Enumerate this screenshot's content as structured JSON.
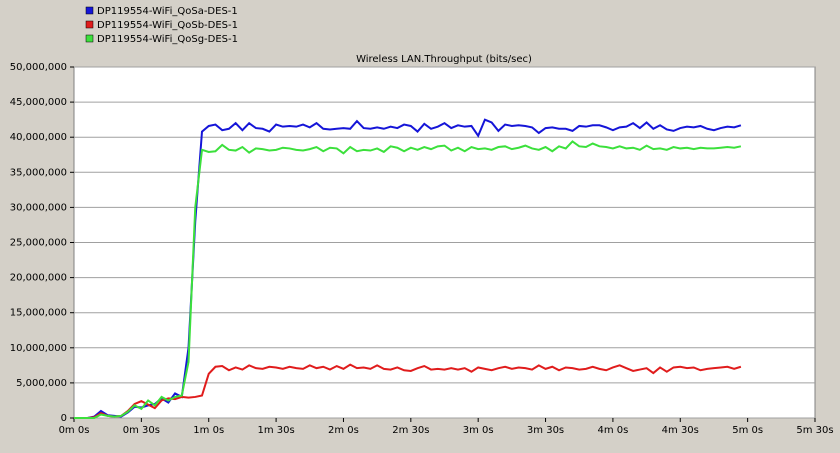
{
  "chart_data": {
    "type": "line",
    "title": "Wireless LAN.Throughput (bits/sec)",
    "x": [
      0,
      3,
      6,
      9,
      12,
      15,
      18,
      21,
      24,
      27,
      30,
      33,
      36,
      39,
      42,
      45,
      48,
      51,
      54,
      57,
      60,
      63,
      66,
      69,
      72,
      75,
      78,
      81,
      84,
      87,
      90,
      93,
      96,
      99,
      102,
      105,
      108,
      111,
      114,
      117,
      120,
      123,
      126,
      129,
      132,
      135,
      138,
      141,
      144,
      147,
      150,
      153,
      156,
      159,
      162,
      165,
      168,
      171,
      174,
      177,
      180,
      183,
      186,
      189,
      192,
      195,
      198,
      201,
      204,
      207,
      210,
      213,
      216,
      219,
      222,
      225,
      228,
      231,
      234,
      237,
      240,
      243,
      246,
      249,
      252,
      255,
      258,
      261,
      264,
      267,
      270,
      273,
      276,
      279,
      282,
      285,
      288,
      291,
      294,
      297
    ],
    "series": [
      {
        "name": "DP119554-WiFi_QoSa-DES-1",
        "color": "#1515d8",
        "values": [
          0,
          0,
          0,
          200000,
          1000000,
          400000,
          300000,
          200000,
          800000,
          1600000,
          1500000,
          1800000,
          2000000,
          2800000,
          2200000,
          3500000,
          3000000,
          10000000,
          28000000,
          40800000,
          41600000,
          41800000,
          41000000,
          41200000,
          42000000,
          41000000,
          42000000,
          41300000,
          41200000,
          40800000,
          41800000,
          41500000,
          41600000,
          41500000,
          41800000,
          41400000,
          42000000,
          41200000,
          41100000,
          41200000,
          41300000,
          41200000,
          42300000,
          41300000,
          41200000,
          41400000,
          41200000,
          41500000,
          41300000,
          41800000,
          41600000,
          40800000,
          41900000,
          41200000,
          41500000,
          42000000,
          41300000,
          41700000,
          41500000,
          41600000,
          40200000,
          42500000,
          42100000,
          40900000,
          41800000,
          41600000,
          41700000,
          41600000,
          41400000,
          40600000,
          41300000,
          41400000,
          41200000,
          41200000,
          40900000,
          41600000,
          41500000,
          41700000,
          41700000,
          41400000,
          41000000,
          41400000,
          41500000,
          42000000,
          41300000,
          42100000,
          41200000,
          41700000,
          41100000,
          40900000,
          41300000,
          41500000,
          41400000,
          41600000,
          41200000,
          41000000,
          41300000,
          41500000,
          41400000,
          41700000
        ]
      },
      {
        "name": "DP119554-WiFi_QoSb-DES-1",
        "color": "#e01c1c",
        "values": [
          0,
          0,
          0,
          100000,
          700000,
          300000,
          200000,
          300000,
          1000000,
          2000000,
          2400000,
          1900000,
          1400000,
          2500000,
          2800000,
          2700000,
          3000000,
          2900000,
          3000000,
          3200000,
          6300000,
          7300000,
          7400000,
          6800000,
          7200000,
          6900000,
          7500000,
          7100000,
          7000000,
          7300000,
          7200000,
          7000000,
          7300000,
          7100000,
          7000000,
          7500000,
          7100000,
          7300000,
          6900000,
          7400000,
          7000000,
          7600000,
          7100000,
          7200000,
          7000000,
          7500000,
          7000000,
          6900000,
          7200000,
          6800000,
          6700000,
          7100000,
          7400000,
          6900000,
          7000000,
          6900000,
          7100000,
          6900000,
          7100000,
          6600000,
          7200000,
          7000000,
          6800000,
          7100000,
          7300000,
          7000000,
          7200000,
          7100000,
          6900000,
          7500000,
          7000000,
          7300000,
          6800000,
          7200000,
          7100000,
          6900000,
          7000000,
          7300000,
          7000000,
          6800000,
          7200000,
          7500000,
          7100000,
          6700000,
          6900000,
          7100000,
          6400000,
          7200000,
          6600000,
          7200000,
          7300000,
          7100000,
          7200000,
          6800000,
          7000000,
          7100000,
          7200000,
          7300000,
          7000000,
          7300000
        ]
      },
      {
        "name": "DP119554-WiFi_QoSg-DES-1",
        "color": "#3ce03c",
        "values": [
          0,
          0,
          0,
          0,
          500000,
          300000,
          200000,
          300000,
          900000,
          1800000,
          1300000,
          2500000,
          1800000,
          3000000,
          2500000,
          3000000,
          3200000,
          8000000,
          30000000,
          38200000,
          37900000,
          38000000,
          38900000,
          38200000,
          38100000,
          38600000,
          37800000,
          38400000,
          38300000,
          38100000,
          38200000,
          38500000,
          38400000,
          38200000,
          38100000,
          38300000,
          38600000,
          38000000,
          38500000,
          38400000,
          37700000,
          38600000,
          38000000,
          38200000,
          38100000,
          38400000,
          37900000,
          38700000,
          38500000,
          38000000,
          38500000,
          38200000,
          38600000,
          38300000,
          38700000,
          38800000,
          38100000,
          38500000,
          38000000,
          38600000,
          38300000,
          38400000,
          38200000,
          38600000,
          38700000,
          38300000,
          38500000,
          38800000,
          38400000,
          38200000,
          38600000,
          38000000,
          38700000,
          38400000,
          39400000,
          38700000,
          38600000,
          39100000,
          38700000,
          38600000,
          38400000,
          38700000,
          38400000,
          38500000,
          38200000,
          38800000,
          38300000,
          38400000,
          38200000,
          38600000,
          38400000,
          38500000,
          38300000,
          38500000,
          38400000,
          38400000,
          38500000,
          38600000,
          38500000,
          38700000
        ]
      }
    ],
    "xlim": [
      0,
      330
    ],
    "xticks": [
      {
        "value": 0,
        "label": "0m 0s"
      },
      {
        "value": 30,
        "label": "0m 30s"
      },
      {
        "value": 60,
        "label": "1m 0s"
      },
      {
        "value": 90,
        "label": "1m 30s"
      },
      {
        "value": 120,
        "label": "2m 0s"
      },
      {
        "value": 150,
        "label": "2m 30s"
      },
      {
        "value": 180,
        "label": "3m 0s"
      },
      {
        "value": 210,
        "label": "3m 30s"
      },
      {
        "value": 240,
        "label": "4m 0s"
      },
      {
        "value": 270,
        "label": "4m 30s"
      },
      {
        "value": 300,
        "label": "5m 0s"
      },
      {
        "value": 330,
        "label": "5m 30s"
      }
    ],
    "ylim": [
      0,
      50000000
    ],
    "yticks": [
      {
        "value": 0,
        "label": "0"
      },
      {
        "value": 5000000,
        "label": "5,000,000"
      },
      {
        "value": 10000000,
        "label": "10,000,000"
      },
      {
        "value": 15000000,
        "label": "15,000,000"
      },
      {
        "value": 20000000,
        "label": "20,000,000"
      },
      {
        "value": 25000000,
        "label": "25,000,000"
      },
      {
        "value": 30000000,
        "label": "30,000,000"
      },
      {
        "value": 35000000,
        "label": "35,000,000"
      },
      {
        "value": 40000000,
        "label": "40,000,000"
      },
      {
        "value": 45000000,
        "label": "45,000,000"
      },
      {
        "value": 50000000,
        "label": "50,000,000"
      }
    ],
    "grid": true,
    "legend": "top-left"
  }
}
